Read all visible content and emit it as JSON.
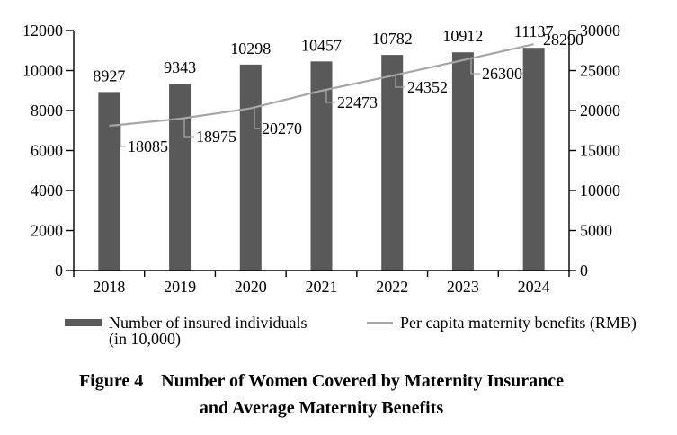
{
  "figure": {
    "caption_label": "Figure 4",
    "caption_line1": "Number of Women Covered by Maternity Insurance",
    "caption_line2": "and Average Maternity Benefits"
  },
  "legend": {
    "bar_label_line1": "Number of insured individuals",
    "bar_label_line2": "(in 10,000)",
    "line_label": "Per capita maternity benefits (RMB)"
  },
  "chart_data": {
    "type": "bar",
    "subtype": "bar+line dual axis",
    "title": "Figure 4 Number of Women Covered by Maternity Insurance and Average Maternity Benefits",
    "categories": [
      "2018",
      "2019",
      "2020",
      "2021",
      "2022",
      "2023",
      "2024"
    ],
    "series": [
      {
        "name": "Number of insured individuals (in 10,000)",
        "type": "bar",
        "axis": "left",
        "color": "#595959",
        "values": [
          8927,
          9343,
          10298,
          10457,
          10782,
          10912,
          11137
        ]
      },
      {
        "name": "Per capita maternity benefits (RMB)",
        "type": "line",
        "axis": "right",
        "color": "#a6a6a6",
        "values": [
          18085,
          18975,
          20270,
          22473,
          24352,
          26300,
          28290
        ]
      }
    ],
    "left_axis": {
      "min": 0,
      "max": 12000,
      "step": 2000
    },
    "right_axis": {
      "min": 0,
      "max": 30000,
      "step": 5000
    },
    "grid": false,
    "data_labels": true,
    "legend_position": "bottom",
    "xlabel": "",
    "ylabel": ""
  }
}
